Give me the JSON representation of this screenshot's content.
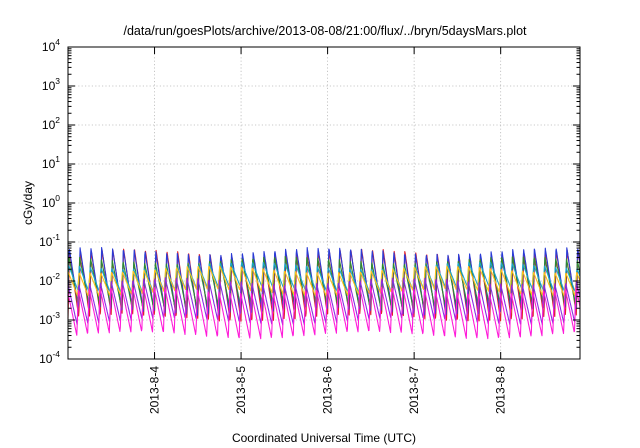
{
  "chart_data": {
    "type": "line",
    "title": "/data/run/goesPlots/archive/2013-08-08/21:00/flux/../bryn/5daysMars.plot",
    "xlabel": "Coordinated Universal Time (UTC)",
    "ylabel": "cGy/day",
    "y_scale": "log",
    "ylim": [
      0.0001,
      10000
    ],
    "y_ticks": [
      {
        "base": "10",
        "exp": "-4",
        "value": 0.0001
      },
      {
        "base": "10",
        "exp": "-3",
        "value": 0.001
      },
      {
        "base": "10",
        "exp": "-2",
        "value": 0.01
      },
      {
        "base": "10",
        "exp": "-1",
        "value": 0.1
      },
      {
        "base": "10",
        "exp": "0",
        "value": 1
      },
      {
        "base": "10",
        "exp": "1",
        "value": 10
      },
      {
        "base": "10",
        "exp": "2",
        "value": 100
      },
      {
        "base": "10",
        "exp": "3",
        "value": 1000
      },
      {
        "base": "10",
        "exp": "4",
        "value": 10000
      }
    ],
    "xlim": [
      "2013-08-03 00:00",
      "2013-08-08 22:00"
    ],
    "x_ticks": [
      {
        "label": "2013-8-4",
        "value": "2013-08-04 00:00"
      },
      {
        "label": "2013-8-5",
        "value": "2013-08-05 00:00"
      },
      {
        "label": "2013-8-6",
        "value": "2013-08-06 00:00"
      },
      {
        "label": "2013-8-7",
        "value": "2013-08-07 00:00"
      },
      {
        "label": "2013-8-8",
        "value": "2013-08-08 00:00"
      }
    ],
    "grid": true,
    "legend": "none",
    "oscillation_period_hours": 3,
    "series": [
      {
        "color": "#e0202a",
        "peak": 0.055,
        "trough": 0.0011
      },
      {
        "color": "#2a3bd6",
        "peak": 0.06,
        "trough": 0.0016
      },
      {
        "color": "#2f8a2f",
        "peak": 0.035,
        "trough": 0.0022
      },
      {
        "color": "#1aa7c9",
        "peak": 0.025,
        "trough": 0.006
      },
      {
        "color": "#ffc21a",
        "peak": 0.02,
        "trough": 0.005
      },
      {
        "color": "#8a2be2",
        "peak": 0.01,
        "trough": 0.0009
      },
      {
        "color": "#ff1ad9",
        "peak": 0.006,
        "trough": 0.0004
      }
    ]
  }
}
